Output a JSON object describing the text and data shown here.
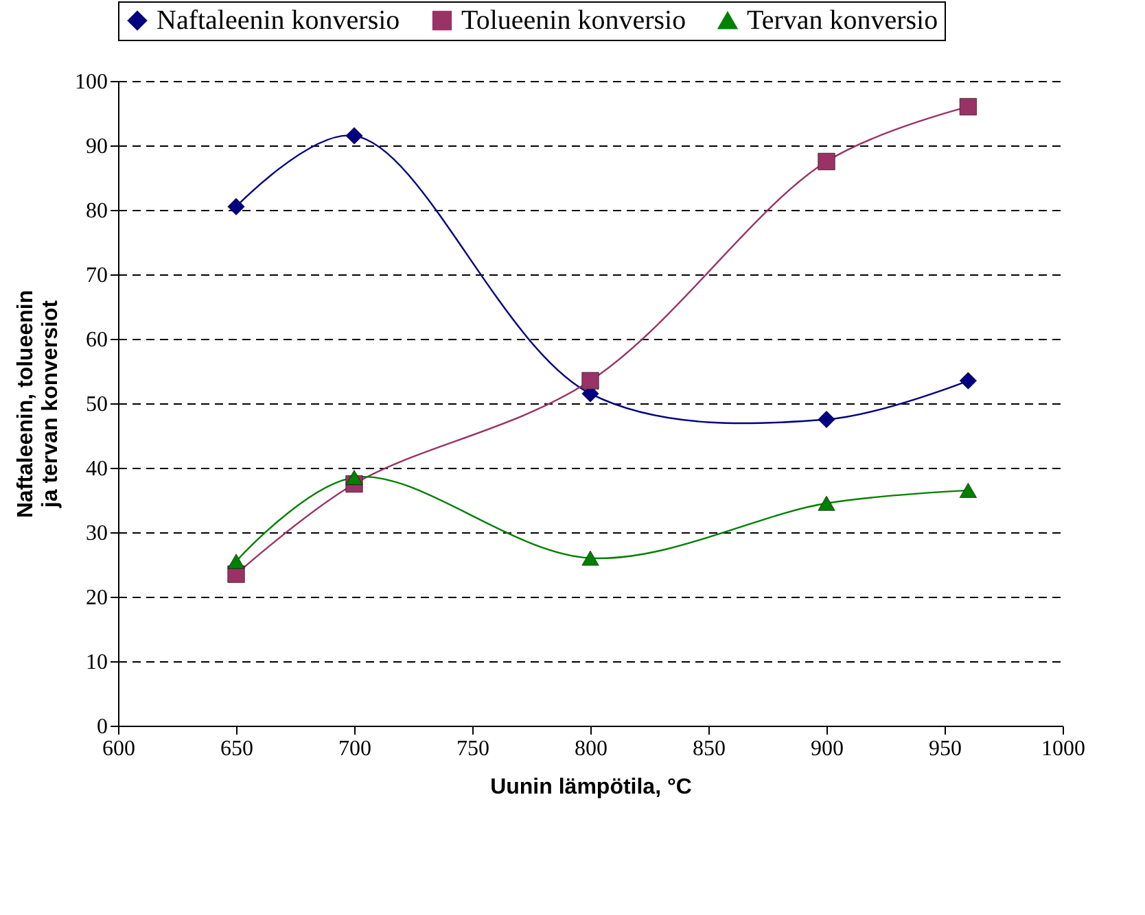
{
  "chart_data": {
    "type": "line",
    "xlabel": "Uunin lämpötila, °C",
    "ylabel": "Naftaleenin, tolueenin\nja tervan konversiot",
    "x": [
      650,
      700,
      800,
      900,
      960
    ],
    "series": [
      {
        "name": "Naftaleenin konversio",
        "color": "#000080",
        "marker": "diamond",
        "values": [
          80.5,
          91.5,
          51.5,
          47.5,
          53.5
        ]
      },
      {
        "name": "Tolueenin konversio",
        "color": "#993366",
        "marker": "square",
        "values": [
          23.5,
          37.5,
          53.5,
          87.5,
          96
        ]
      },
      {
        "name": "Tervan konversio",
        "color": "#008000",
        "marker": "triangle",
        "values": [
          25.5,
          38.5,
          26,
          34.5,
          36.5
        ]
      }
    ],
    "xlim": [
      600,
      1000
    ],
    "xticks": [
      600,
      650,
      700,
      750,
      800,
      850,
      900,
      950,
      1000
    ],
    "ylim": [
      0,
      100
    ],
    "yticks": [
      0,
      10,
      20,
      30,
      40,
      50,
      60,
      70,
      80,
      90,
      100
    ],
    "grid": "y",
    "legend": "top",
    "line_style": "solid"
  }
}
